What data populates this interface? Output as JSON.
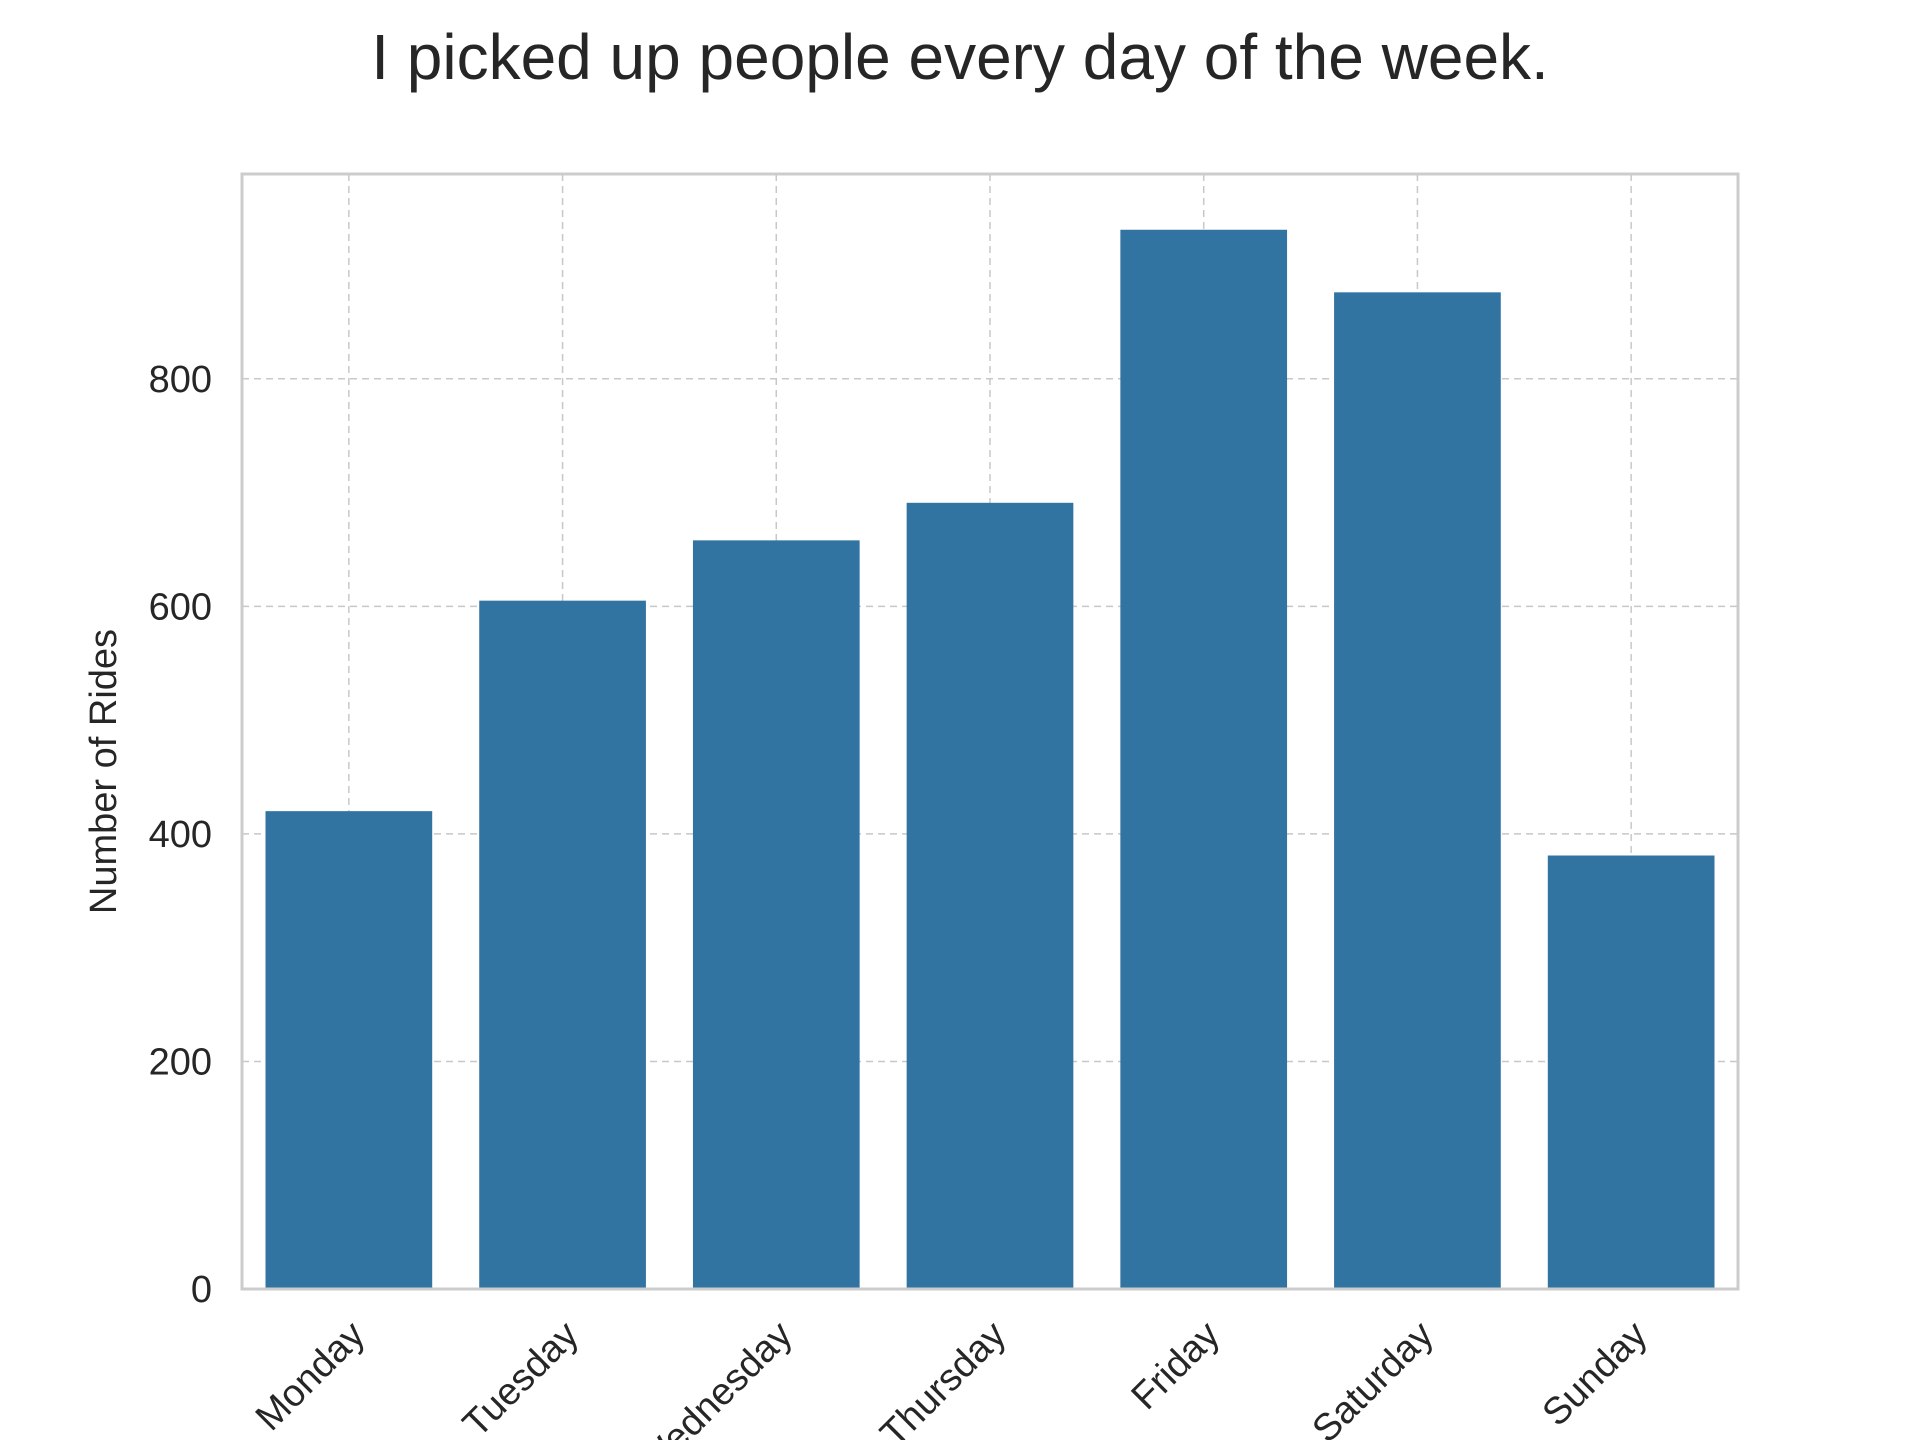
{
  "chart_data": {
    "type": "bar",
    "title": "I picked up people every day of the week.",
    "xlabel": "",
    "ylabel": "Number of Rides",
    "categories": [
      "Monday",
      "Tuesday",
      "Wednesday",
      "Thursday",
      "Friday",
      "Saturday",
      "Sunday"
    ],
    "values": [
      420,
      605,
      658,
      691,
      931,
      876,
      381
    ],
    "ylim": [
      0,
      980
    ],
    "yticks": [
      0,
      200,
      400,
      600,
      800
    ],
    "grid": true,
    "bar_color": "#3274a1",
    "grid_color": "#c8c8c8",
    "frame_color": "#cccccc"
  }
}
